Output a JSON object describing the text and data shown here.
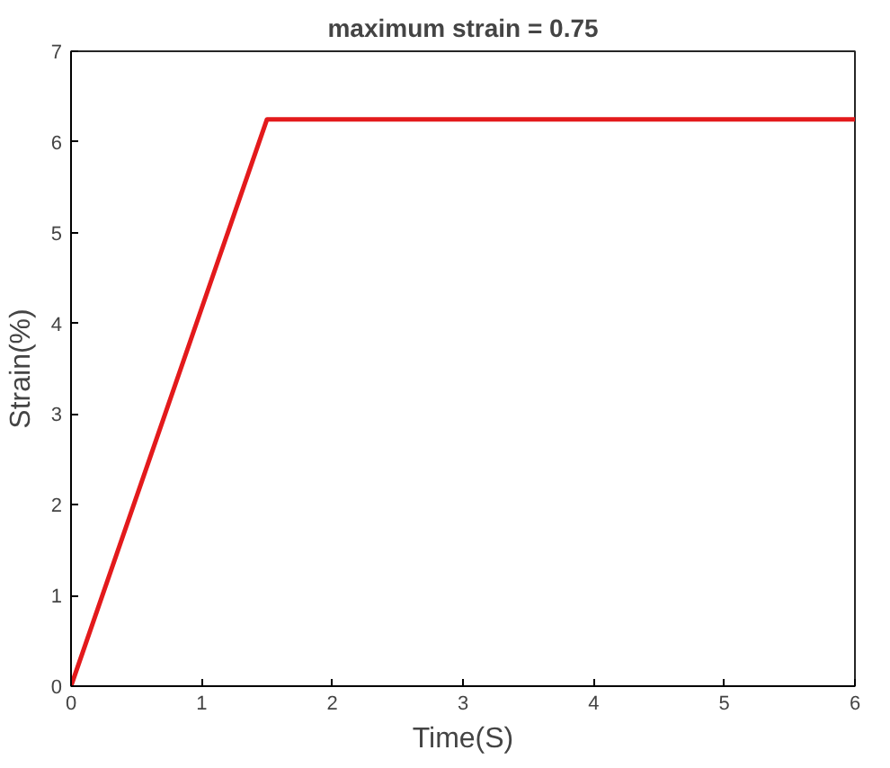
{
  "chart_data": {
    "type": "line",
    "title": "maximum strain = 0.75",
    "xlabel": "Time(S)",
    "ylabel": "Strain(%)",
    "x": [
      0,
      1.5,
      6
    ],
    "series": [
      {
        "color": "#e31a1c",
        "values": [
          0,
          6.25,
          6.25
        ]
      }
    ],
    "xlim": [
      0,
      6
    ],
    "ylim": [
      0,
      7
    ],
    "xticks": [
      0,
      1,
      2,
      3,
      4,
      5,
      6
    ],
    "yticks": [
      0,
      1,
      2,
      3,
      4,
      5,
      6,
      7
    ],
    "grid": false,
    "marker": "none",
    "line_style": "solid"
  }
}
